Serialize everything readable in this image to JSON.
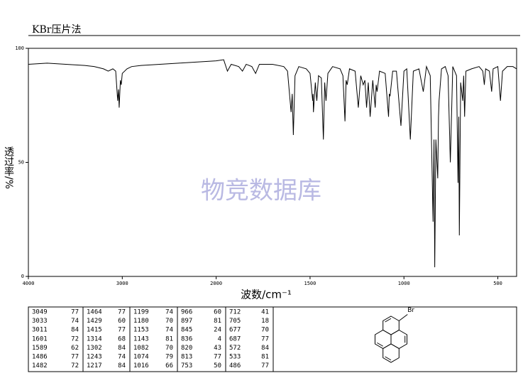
{
  "chart_data": {
    "type": "line",
    "title": "KBr压片法",
    "x_label": "波数/cm⁻¹",
    "y_label": "透过率/%",
    "watermark": "物竞数据库",
    "color": "#000000",
    "xlim": [
      4000,
      400
    ],
    "xticks": [
      4000,
      3000,
      2000,
      1500,
      1000,
      500
    ],
    "ylim": [
      0,
      100
    ],
    "yticks": [
      0,
      50,
      100
    ],
    "grid": false,
    "x": [
      4000,
      3800,
      3600,
      3400,
      3300,
      3200,
      3150,
      3100,
      3070,
      3049,
      3040,
      3033,
      3020,
      3011,
      3000,
      2950,
      2900,
      2800,
      2600,
      2400,
      2200,
      2000,
      1960,
      1940,
      1920,
      1880,
      1860,
      1840,
      1810,
      1790,
      1770,
      1700,
      1640,
      1620,
      1601,
      1595,
      1589,
      1580,
      1560,
      1520,
      1500,
      1486,
      1484,
      1482,
      1472,
      1464,
      1455,
      1440,
      1429,
      1422,
      1415,
      1405,
      1380,
      1340,
      1325,
      1314,
      1308,
      1302,
      1290,
      1260,
      1243,
      1230,
      1217,
      1208,
      1199,
      1190,
      1180,
      1166,
      1153,
      1148,
      1143,
      1130,
      1100,
      1082,
      1078,
      1074,
      1060,
      1040,
      1016,
      1000,
      985,
      966,
      950,
      920,
      897,
      880,
      860,
      845,
      840,
      836,
      830,
      820,
      816,
      813,
      800,
      780,
      765,
      753,
      740,
      720,
      712,
      708,
      705,
      698,
      687,
      682,
      677,
      670,
      640,
      600,
      580,
      572,
      565,
      545,
      533,
      525,
      500,
      486,
      475,
      450,
      420,
      400
    ],
    "values": [
      93,
      93.5,
      93,
      92.5,
      92,
      91,
      90,
      91,
      90,
      77,
      82,
      74,
      86,
      84,
      89,
      91,
      92,
      92.5,
      93,
      93.5,
      94,
      94.5,
      95,
      90,
      93,
      92,
      90,
      93,
      92,
      89,
      93,
      93,
      92,
      90,
      72,
      80,
      62,
      88,
      92,
      91,
      89,
      77,
      80,
      72,
      85,
      77,
      88,
      87,
      60,
      85,
      77,
      89,
      92,
      91,
      88,
      68,
      86,
      84,
      91,
      90,
      74,
      88,
      84,
      86,
      74,
      85,
      70,
      86,
      74,
      84,
      81,
      90,
      89,
      70,
      80,
      79,
      90,
      90,
      66,
      90,
      91,
      60,
      90,
      91,
      81,
      92,
      88,
      24,
      60,
      4,
      60,
      43,
      70,
      77,
      91,
      92,
      88,
      50,
      92,
      88,
      41,
      70,
      18,
      85,
      77,
      88,
      70,
      90,
      91,
      92,
      90,
      84,
      91,
      90,
      81,
      91,
      92,
      77,
      90,
      92,
      92,
      91
    ]
  },
  "peak_table": [
    [
      [
        3049,
        77
      ],
      [
        3033,
        74
      ],
      [
        3011,
        84
      ],
      [
        1601,
        72
      ],
      [
        1589,
        62
      ],
      [
        1486,
        77
      ],
      [
        1482,
        72
      ]
    ],
    [
      [
        1464,
        77
      ],
      [
        1429,
        60
      ],
      [
        1415,
        77
      ],
      [
        1314,
        68
      ],
      [
        1302,
        84
      ],
      [
        1243,
        74
      ],
      [
        1217,
        84
      ]
    ],
    [
      [
        1199,
        74
      ],
      [
        1180,
        70
      ],
      [
        1153,
        74
      ],
      [
        1143,
        81
      ],
      [
        1082,
        70
      ],
      [
        1074,
        79
      ],
      [
        1016,
        66
      ]
    ],
    [
      [
        966,
        60
      ],
      [
        897,
        81
      ],
      [
        845,
        24
      ],
      [
        836,
        4
      ],
      [
        820,
        43
      ],
      [
        813,
        77
      ],
      [
        753,
        50
      ]
    ],
    [
      [
        712,
        41
      ],
      [
        705,
        18
      ],
      [
        677,
        70
      ],
      [
        687,
        77
      ],
      [
        572,
        84
      ],
      [
        533,
        81
      ],
      [
        486,
        77
      ]
    ]
  ],
  "structure": {
    "substituent": "Br"
  }
}
